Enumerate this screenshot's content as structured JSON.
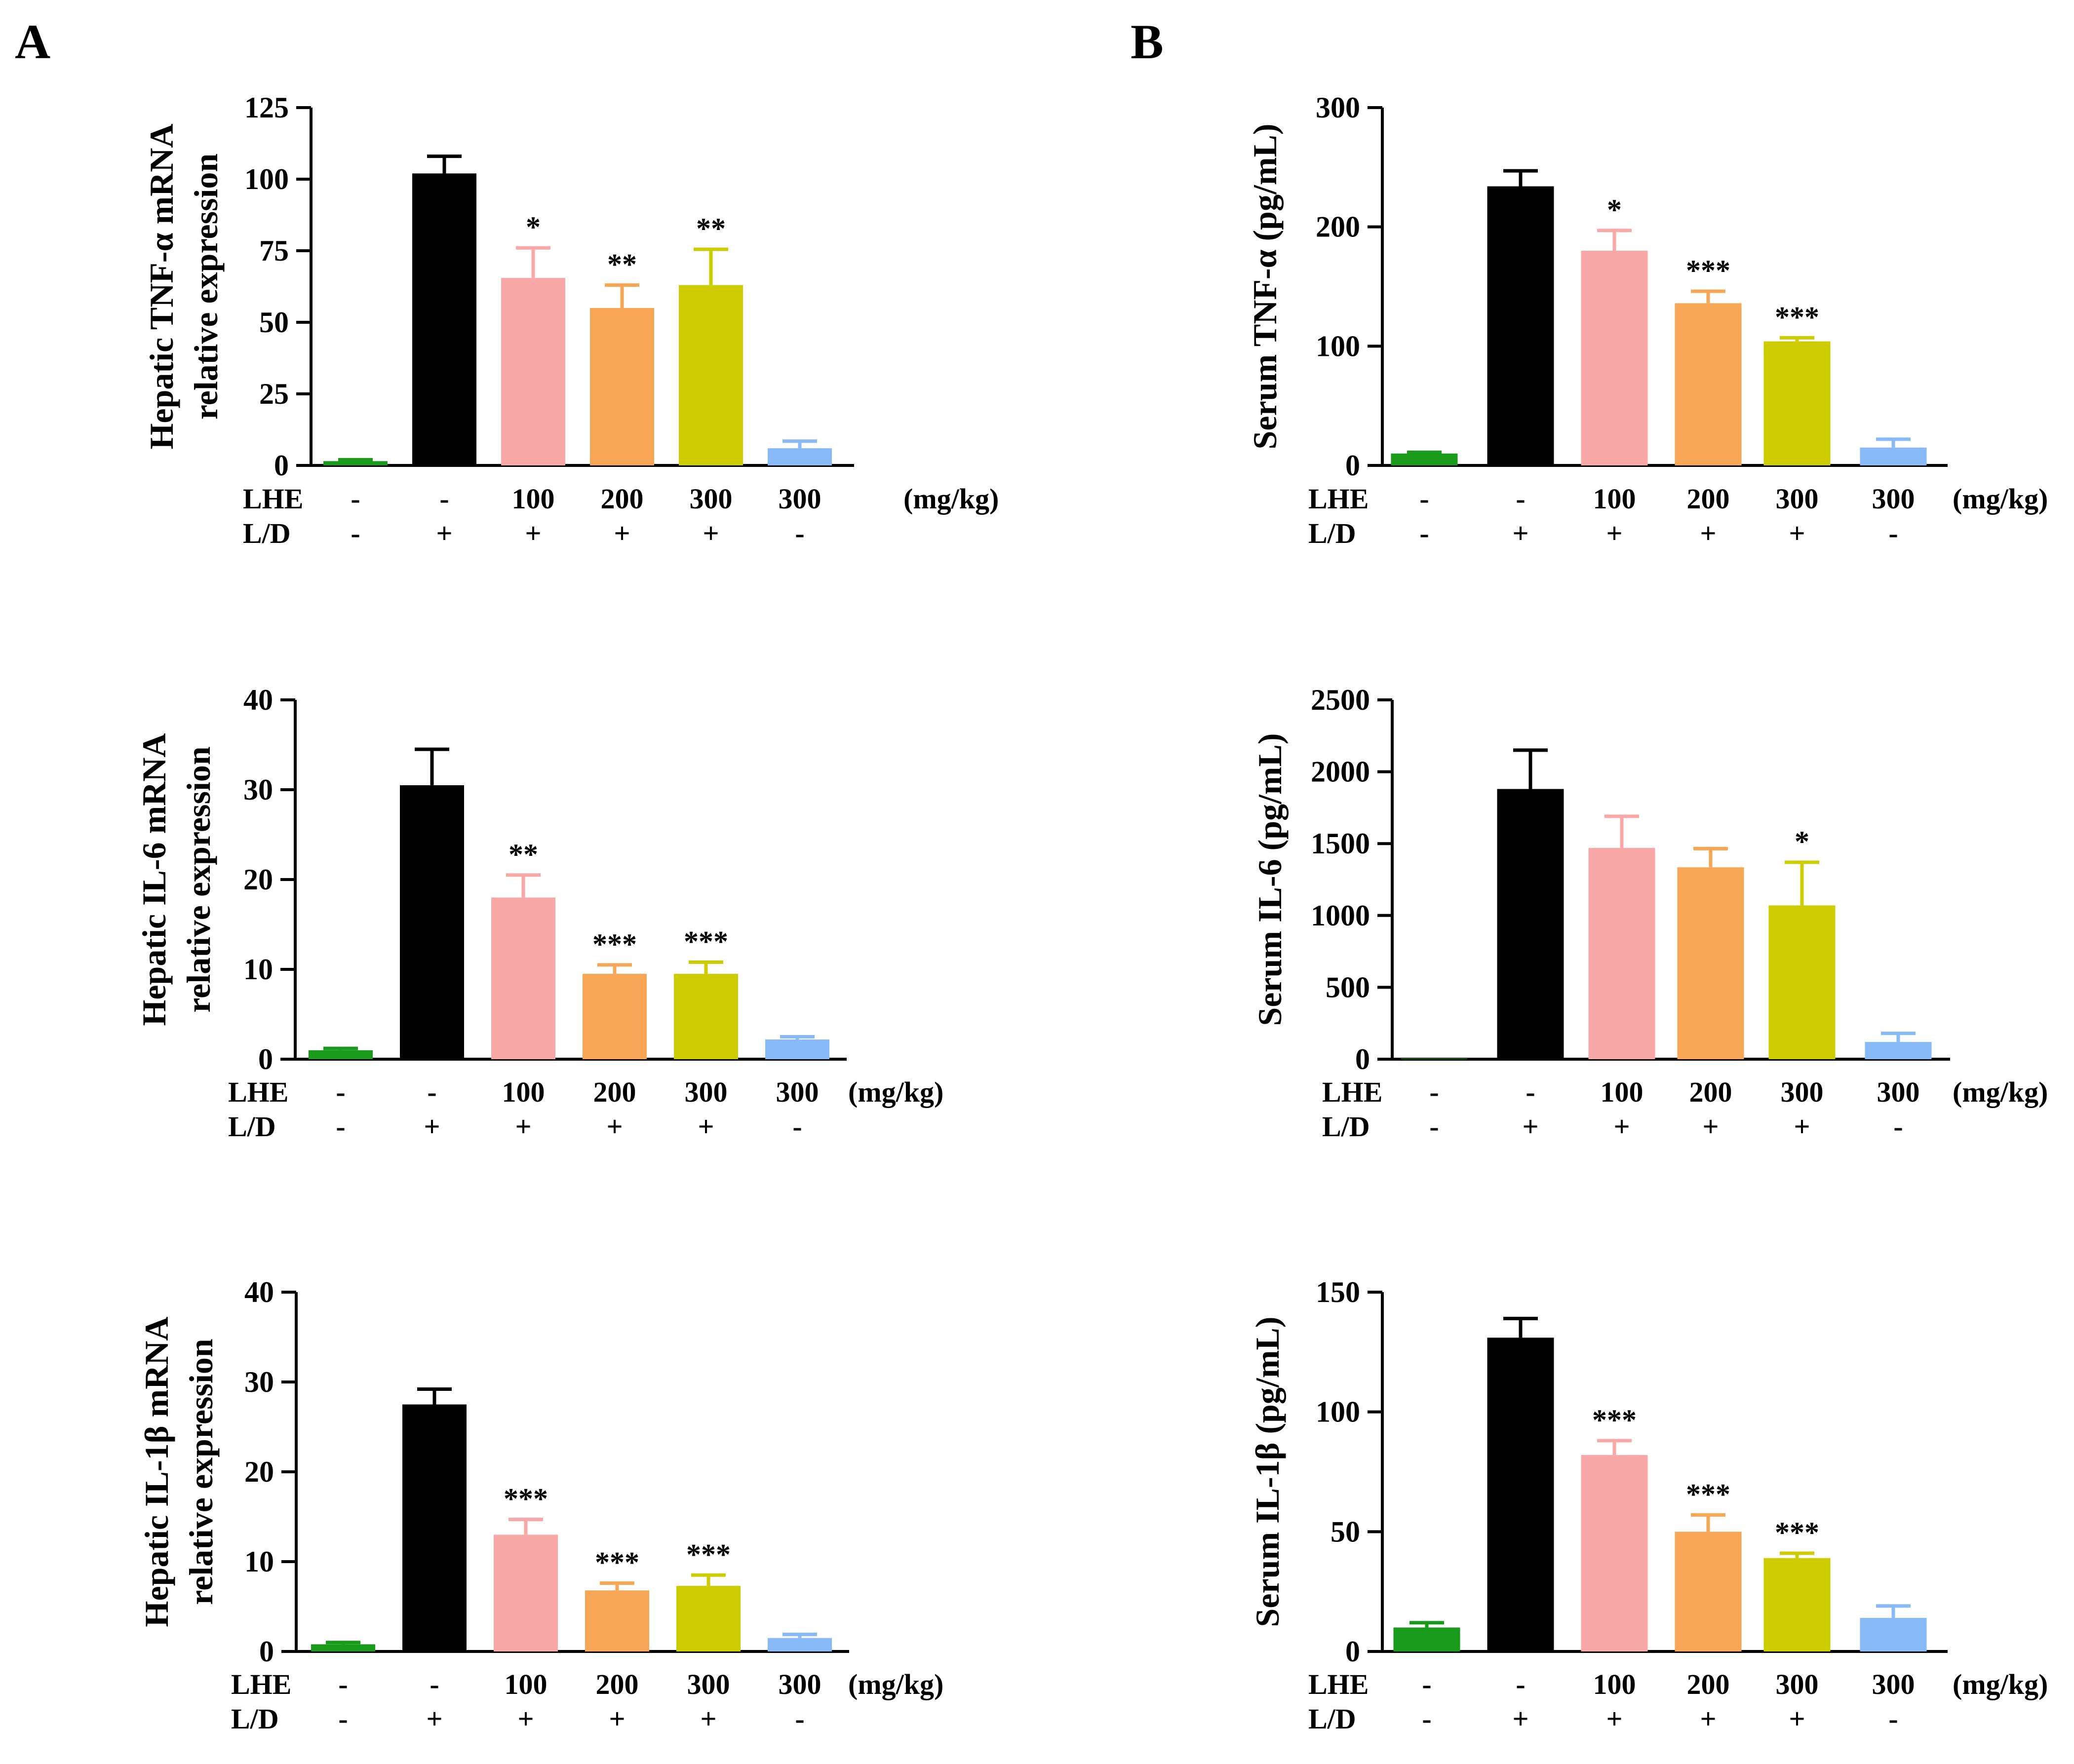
{
  "panel_labels": [
    "A",
    "B"
  ],
  "chart_data": [
    {
      "type": "bar",
      "panel": "A",
      "ylabel": [
        "Hepatic TNF-α mRNA",
        "relative expression"
      ],
      "categories": [
        "1",
        "2",
        "3",
        "4",
        "5",
        "6"
      ],
      "colors": [
        "#1a9a1a",
        "#000000",
        "#f9a8a8",
        "#f7a655",
        "#cccc00",
        "#87baf7"
      ],
      "values": [
        1.5,
        102,
        65.5,
        55,
        63,
        6
      ],
      "errors": [
        0.5,
        6,
        10.5,
        8,
        12.5,
        2.5
      ],
      "significance": [
        "",
        "",
        "*",
        "**",
        "**",
        ""
      ],
      "yticks": [
        "0",
        "25",
        "50",
        "75",
        "100",
        "125"
      ],
      "ylim": [
        0,
        125
      ],
      "rows": [
        {
          "label": "LHE",
          "values": [
            "-",
            "-",
            "100",
            "200",
            "300",
            "300"
          ],
          "unit": "(mg/kg)"
        },
        {
          "label": "L/D",
          "values": [
            "-",
            "+",
            "+",
            "+",
            "+",
            "-"
          ],
          "unit": ""
        }
      ]
    },
    {
      "type": "bar",
      "panel": "B",
      "ylabel": [
        "Serum TNF-α (pg/mL)"
      ],
      "categories": [
        "1",
        "2",
        "3",
        "4",
        "5",
        "6"
      ],
      "colors": [
        "#1a9a1a",
        "#000000",
        "#f9a8a8",
        "#f7a655",
        "#cccc00",
        "#87baf7"
      ],
      "values": [
        10,
        234,
        180,
        136,
        104,
        15
      ],
      "errors": [
        1,
        13,
        17,
        10,
        3,
        7
      ],
      "significance": [
        "",
        "",
        "*",
        "***",
        "***",
        ""
      ],
      "yticks": [
        "0",
        "100",
        "200",
        "300"
      ],
      "ylim": [
        0,
        300
      ],
      "rows": [
        {
          "label": "LHE",
          "values": [
            "-",
            "-",
            "100",
            "200",
            "300",
            "300"
          ],
          "unit": "(mg/kg)"
        },
        {
          "label": "L/D",
          "values": [
            "-",
            "+",
            "+",
            "+",
            "+",
            "-"
          ],
          "unit": ""
        }
      ]
    },
    {
      "type": "bar",
      "panel": "A",
      "ylabel": [
        "Hepatic IL-6 mRNA",
        "relative expression"
      ],
      "categories": [
        "1",
        "2",
        "3",
        "4",
        "5",
        "6"
      ],
      "colors": [
        "#1a9a1a",
        "#000000",
        "#f9a8a8",
        "#f7a655",
        "#cccc00",
        "#87baf7"
      ],
      "values": [
        1,
        30.5,
        18,
        9.5,
        9.5,
        2.2
      ],
      "errors": [
        0.2,
        4,
        2.5,
        1,
        1.3,
        0.3
      ],
      "significance": [
        "",
        "",
        "**",
        "***",
        "***",
        ""
      ],
      "yticks": [
        "0",
        "10",
        "20",
        "30",
        "40"
      ],
      "ylim": [
        0,
        40
      ],
      "rows": [
        {
          "label": "LHE",
          "values": [
            "-",
            "-",
            "100",
            "200",
            "300",
            "300"
          ],
          "unit": "(mg/kg)"
        },
        {
          "label": "L/D",
          "values": [
            "-",
            "+",
            "+",
            "+",
            "+",
            "-"
          ],
          "unit": ""
        }
      ]
    },
    {
      "type": "bar",
      "panel": "B",
      "ylabel": [
        "Serum IL-6 (pg/mL)"
      ],
      "categories": [
        "1",
        "2",
        "3",
        "4",
        "5",
        "6"
      ],
      "colors": [
        "#1a9a1a",
        "#000000",
        "#f9a8a8",
        "#f7a655",
        "#cccc00",
        "#87baf7"
      ],
      "values": [
        5,
        1880,
        1470,
        1335,
        1070,
        120
      ],
      "errors": [
        0,
        270,
        220,
        130,
        300,
        60
      ],
      "significance": [
        "",
        "",
        "",
        "",
        "*",
        ""
      ],
      "yticks": [
        "0",
        "500",
        "1000",
        "1500",
        "2000",
        "2500"
      ],
      "ylim": [
        0,
        2500
      ],
      "rows": [
        {
          "label": "LHE",
          "values": [
            "-",
            "-",
            "100",
            "200",
            "300",
            "300"
          ],
          "unit": "(mg/kg)"
        },
        {
          "label": "L/D",
          "values": [
            "-",
            "+",
            "+",
            "+",
            "+",
            "-"
          ],
          "unit": ""
        }
      ]
    },
    {
      "type": "bar",
      "panel": "A",
      "ylabel": [
        "Hepatic IL-1β mRNA",
        "relative expression"
      ],
      "categories": [
        "1",
        "2",
        "3",
        "4",
        "5",
        "6"
      ],
      "colors": [
        "#1a9a1a",
        "#000000",
        "#f9a8a8",
        "#f7a655",
        "#cccc00",
        "#87baf7"
      ],
      "values": [
        0.8,
        27.5,
        13,
        6.8,
        7.3,
        1.5
      ],
      "errors": [
        0.2,
        1.7,
        1.7,
        0.8,
        1.2,
        0.4
      ],
      "significance": [
        "",
        "",
        "***",
        "***",
        "***",
        ""
      ],
      "yticks": [
        "0",
        "10",
        "20",
        "30",
        "40"
      ],
      "ylim": [
        0,
        40
      ],
      "rows": [
        {
          "label": "LHE",
          "values": [
            "-",
            "-",
            "100",
            "200",
            "300",
            "300"
          ],
          "unit": "(mg/kg)"
        },
        {
          "label": "L/D",
          "values": [
            "-",
            "+",
            "+",
            "+",
            "+",
            "-"
          ],
          "unit": ""
        }
      ]
    },
    {
      "type": "bar",
      "panel": "B",
      "ylabel": [
        "Serum IL-1β (pg/mL)"
      ],
      "categories": [
        "1",
        "2",
        "3",
        "4",
        "5",
        "6"
      ],
      "colors": [
        "#1a9a1a",
        "#000000",
        "#f9a8a8",
        "#f7a655",
        "#cccc00",
        "#87baf7"
      ],
      "values": [
        10,
        131,
        82,
        50,
        39,
        14
      ],
      "errors": [
        2,
        8,
        6,
        7,
        2,
        5
      ],
      "significance": [
        "",
        "",
        "***",
        "***",
        "***",
        ""
      ],
      "yticks": [
        "0",
        "50",
        "100",
        "150"
      ],
      "ylim": [
        0,
        150
      ],
      "rows": [
        {
          "label": "LHE",
          "values": [
            "-",
            "-",
            "100",
            "200",
            "300",
            "300"
          ],
          "unit": "(mg/kg)"
        },
        {
          "label": "L/D",
          "values": [
            "-",
            "+",
            "+",
            "+",
            "+",
            "-"
          ],
          "unit": ""
        }
      ]
    }
  ]
}
